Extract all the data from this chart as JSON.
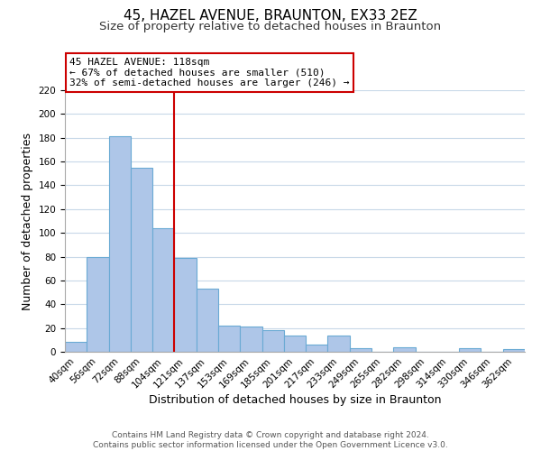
{
  "title": "45, HAZEL AVENUE, BRAUNTON, EX33 2EZ",
  "subtitle": "Size of property relative to detached houses in Braunton",
  "xlabel": "Distribution of detached houses by size in Braunton",
  "ylabel": "Number of detached properties",
  "bar_labels": [
    "40sqm",
    "56sqm",
    "72sqm",
    "88sqm",
    "104sqm",
    "121sqm",
    "137sqm",
    "153sqm",
    "169sqm",
    "185sqm",
    "201sqm",
    "217sqm",
    "233sqm",
    "249sqm",
    "265sqm",
    "282sqm",
    "298sqm",
    "314sqm",
    "330sqm",
    "346sqm",
    "362sqm"
  ],
  "bar_values": [
    8,
    80,
    181,
    155,
    104,
    79,
    53,
    22,
    21,
    18,
    14,
    6,
    14,
    3,
    0,
    4,
    0,
    0,
    3,
    0,
    2
  ],
  "bar_color": "#aec6e8",
  "bar_edge_color": "#6aaad4",
  "vline_x_index": 5,
  "vline_color": "#cc0000",
  "annotation_title": "45 HAZEL AVENUE: 118sqm",
  "annotation_line1": "← 67% of detached houses are smaller (510)",
  "annotation_line2": "32% of semi-detached houses are larger (246) →",
  "annotation_box_color": "#ffffff",
  "annotation_box_edge": "#cc0000",
  "ylim": [
    0,
    220
  ],
  "yticks": [
    0,
    20,
    40,
    60,
    80,
    100,
    120,
    140,
    160,
    180,
    200,
    220
  ],
  "footer1": "Contains HM Land Registry data © Crown copyright and database right 2024.",
  "footer2": "Contains public sector information licensed under the Open Government Licence v3.0.",
  "title_fontsize": 11,
  "subtitle_fontsize": 9.5,
  "axis_label_fontsize": 9,
  "tick_fontsize": 7.5,
  "annotation_fontsize": 8,
  "footer_fontsize": 6.5
}
